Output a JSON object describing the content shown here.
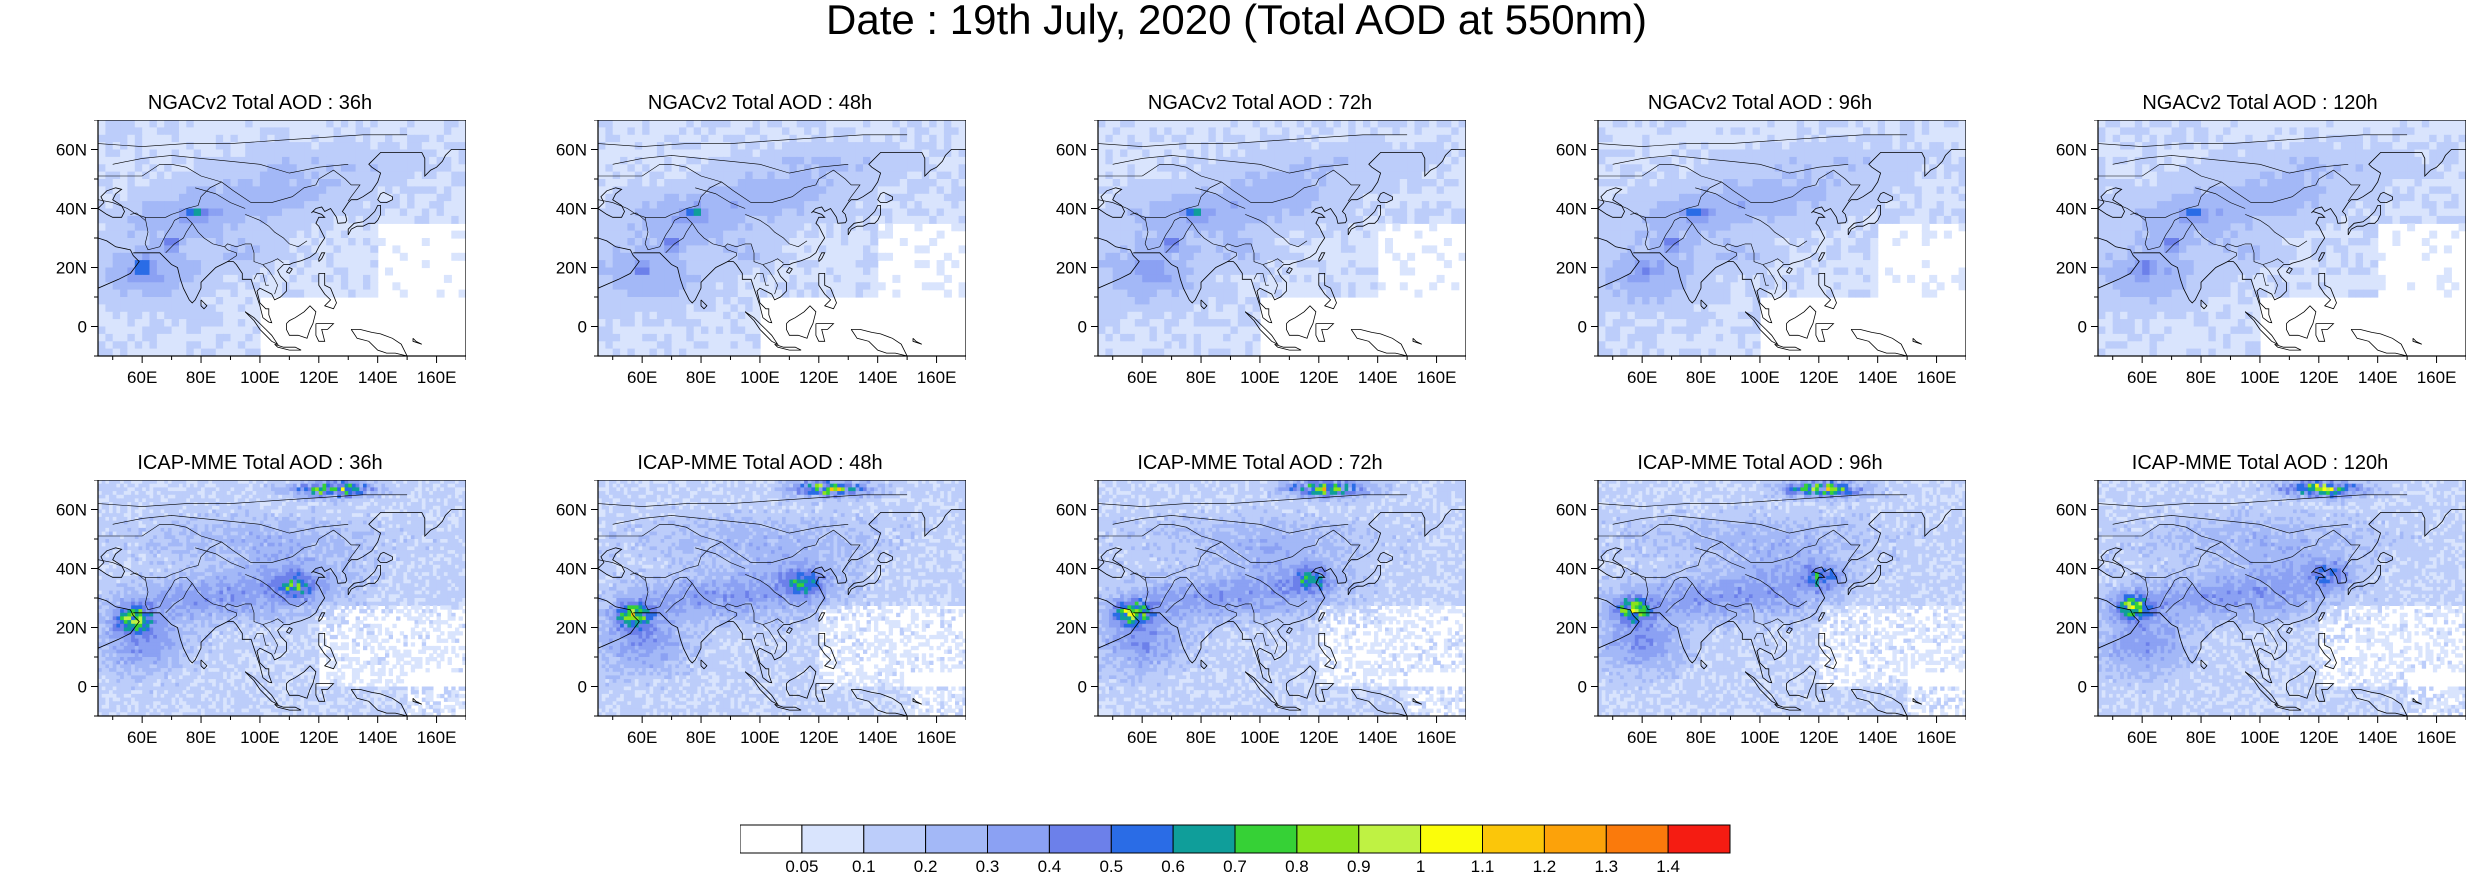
{
  "title": "Date : 19th July, 2020 (Total AOD at 550nm)",
  "lon_ticks": [
    "60E",
    "80E",
    "100E",
    "120E",
    "140E",
    "160E"
  ],
  "lat_ticks": [
    "60N",
    "40N",
    "20N",
    "0"
  ],
  "rows": [
    {
      "model": "NGACv2",
      "panels": [
        {
          "title": "NGACv2 Total AOD : 36h"
        },
        {
          "title": "NGACv2 Total AOD : 48h"
        },
        {
          "title": "NGACv2 Total AOD : 72h"
        },
        {
          "title": "NGACv2 Total AOD : 96h"
        },
        {
          "title": "NGACv2 Total AOD : 120h"
        }
      ]
    },
    {
      "model": "ICAP-MME",
      "panels": [
        {
          "title": "ICAP-MME Total AOD : 36h"
        },
        {
          "title": "ICAP-MME Total AOD : 48h"
        },
        {
          "title": "ICAP-MME Total AOD : 72h"
        },
        {
          "title": "ICAP-MME Total AOD : 96h"
        },
        {
          "title": "ICAP-MME Total AOD : 120h"
        }
      ]
    }
  ],
  "colorbar": {
    "labels": [
      "0.05",
      "0.1",
      "0.2",
      "0.3",
      "0.4",
      "0.5",
      "0.6",
      "0.7",
      "0.8",
      "0.9",
      "1",
      "1.1",
      "1.2",
      "1.3",
      "1.4"
    ],
    "colors": [
      "#ffffff",
      "#d9e4fd",
      "#bccdfa",
      "#a3b8f7",
      "#8ba1f3",
      "#6c80ea",
      "#2a6ce6",
      "#0f9e9a",
      "#36d136",
      "#8be31c",
      "#bff243",
      "#fbfd0a",
      "#fbc60a",
      "#fca20a",
      "#fa7a0c",
      "#f51c12"
    ]
  },
  "colors": {
    "land_outline": "#000000",
    "light_field": "#c8d6fb",
    "mid_field": "#9fb4f5",
    "dark_field": "#6f85ea"
  }
}
